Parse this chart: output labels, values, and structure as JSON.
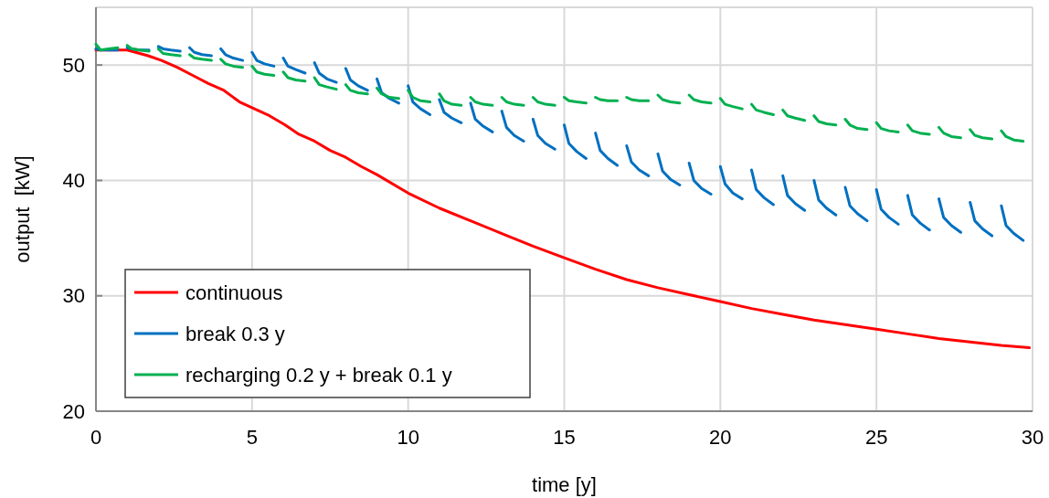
{
  "chart_data": {
    "type": "line",
    "xlabel": "time [y]",
    "ylabel": "output  [kW]",
    "xlim": [
      0,
      30
    ],
    "ylim": [
      20,
      55
    ],
    "xticks": [
      0,
      5,
      10,
      15,
      20,
      25,
      30
    ],
    "yticks": [
      20,
      30,
      40,
      50
    ],
    "grid": true,
    "legend": "bottom left",
    "line_style": "solid",
    "marker": "none",
    "x": [
      0,
      0.15,
      0.4,
      0.7,
      0.85,
      1,
      1.15,
      1.4,
      1.7,
      1.85,
      2,
      2.15,
      2.4,
      2.7,
      2.85,
      3,
      3.15,
      3.4,
      3.7,
      3.85,
      4,
      4.15,
      4.4,
      4.7,
      4.85,
      5,
      5.15,
      5.4,
      5.7,
      5.85,
      6,
      6.15,
      6.4,
      6.7,
      6.85,
      7,
      7.15,
      7.4,
      7.7,
      7.85,
      8,
      8.15,
      8.4,
      8.7,
      8.85,
      9,
      9.15,
      9.4,
      9.7,
      9.85,
      10,
      10.15,
      10.4,
      10.7,
      10.85,
      11,
      11.15,
      11.4,
      11.7,
      11.85,
      12,
      12.15,
      12.4,
      12.7,
      12.85,
      13,
      13.15,
      13.4,
      13.7,
      13.85,
      14,
      14.15,
      14.4,
      14.7,
      14.85,
      15,
      15.15,
      15.4,
      15.7,
      15.85,
      16,
      16.15,
      16.4,
      16.7,
      16.85,
      17,
      17.15,
      17.4,
      17.7,
      17.85,
      18,
      18.15,
      18.4,
      18.7,
      18.85,
      19,
      19.15,
      19.4,
      19.7,
      19.85,
      20,
      20.15,
      20.4,
      20.7,
      20.85,
      21,
      21.15,
      21.4,
      21.7,
      21.85,
      22,
      22.15,
      22.4,
      22.7,
      22.85,
      23,
      23.15,
      23.4,
      23.7,
      23.85,
      24,
      24.15,
      24.4,
      24.7,
      24.85,
      25,
      25.15,
      25.4,
      25.7,
      25.85,
      26,
      26.15,
      26.4,
      26.7,
      26.85,
      27,
      27.15,
      27.4,
      27.7,
      27.85,
      28,
      28.15,
      28.4,
      28.7,
      28.85,
      29,
      29.15,
      29.4,
      29.7
    ],
    "series": [
      {
        "name": "continuous",
        "color": "#ff0000",
        "x": [
          0,
          1,
          1.67,
          2.1,
          2.6,
          3.1,
          3.6,
          4.1,
          4.6,
          5,
          5.56,
          6.06,
          6.5,
          7,
          7.5,
          8,
          8.5,
          9,
          10,
          11,
          12,
          13,
          14,
          15,
          16,
          17,
          18,
          19,
          20,
          21,
          22,
          23,
          24,
          25,
          26,
          27,
          28,
          29,
          29.9
        ],
        "values": [
          51.3,
          51.3,
          50.8,
          50.4,
          49.8,
          49.1,
          48.4,
          47.8,
          46.8,
          46.3,
          45.6,
          44.8,
          44.0,
          43.4,
          42.6,
          42.0,
          41.2,
          40.5,
          38.9,
          37.6,
          36.5,
          35.4,
          34.3,
          33.3,
          32.3,
          31.4,
          30.7,
          30.1,
          29.5,
          28.9,
          28.4,
          27.9,
          27.5,
          27.1,
          26.7,
          26.3,
          26.0,
          25.7,
          25.5
        ]
      },
      {
        "name": "break 0.3 y",
        "color": "#0070c0",
        "values": [
          51.4,
          51.3,
          51.3,
          51.3,
          null,
          51.5,
          51.4,
          51.3,
          51.3,
          null,
          51.6,
          51.4,
          51.3,
          51.2,
          null,
          51.5,
          51.1,
          50.9,
          50.8,
          null,
          51.4,
          50.9,
          50.6,
          50.4,
          null,
          51.1,
          50.4,
          50.1,
          49.9,
          null,
          50.6,
          49.9,
          49.6,
          49.3,
          null,
          50.2,
          49.3,
          48.8,
          48.5,
          null,
          49.7,
          48.7,
          48.2,
          47.8,
          null,
          48.8,
          47.6,
          47.1,
          46.7,
          null,
          48.2,
          46.8,
          46.2,
          45.7,
          null,
          47.0,
          45.9,
          45.4,
          45.0,
          null,
          46.7,
          45.3,
          44.7,
          44.2,
          null,
          46.0,
          44.6,
          43.9,
          43.4,
          null,
          45.3,
          43.9,
          43.2,
          42.7,
          null,
          44.8,
          43.2,
          42.5,
          41.9,
          null,
          44.1,
          42.6,
          41.9,
          41.3,
          null,
          43.0,
          41.6,
          40.9,
          40.4,
          null,
          42.3,
          40.8,
          40.1,
          39.6,
          null,
          41.5,
          40.0,
          39.3,
          38.8,
          null,
          41.2,
          39.7,
          38.9,
          38.4,
          null,
          40.9,
          39.2,
          38.5,
          37.9,
          null,
          40.4,
          38.7,
          38.0,
          37.4,
          null,
          40.0,
          38.3,
          37.6,
          37.0,
          null,
          39.4,
          37.8,
          37.1,
          36.5,
          null,
          39.2,
          37.5,
          36.8,
          36.2,
          null,
          38.7,
          37.0,
          36.3,
          35.7,
          null,
          38.4,
          36.8,
          36.1,
          35.5,
          null,
          38.1,
          36.5,
          35.8,
          35.2,
          null,
          37.8,
          36.1,
          35.4,
          34.8
        ]
      },
      {
        "name": "recharging 0.2 y + break 0.1 y",
        "color": "#00b050",
        "values": [
          51.8,
          51.3,
          51.4,
          51.5,
          null,
          51.7,
          51.4,
          51.3,
          51.2,
          null,
          51.4,
          51.0,
          50.9,
          50.8,
          null,
          50.9,
          50.6,
          50.5,
          50.4,
          null,
          50.5,
          50.1,
          49.9,
          49.8,
          null,
          49.9,
          49.4,
          49.2,
          49.1,
          null,
          49.4,
          48.9,
          48.7,
          48.6,
          null,
          48.9,
          48.3,
          48.1,
          47.9,
          null,
          48.3,
          47.8,
          47.6,
          47.5,
          null,
          48.0,
          47.5,
          47.2,
          47.1,
          null,
          47.8,
          47.2,
          46.9,
          46.8,
          null,
          47.5,
          46.9,
          46.6,
          46.5,
          null,
          47.2,
          46.8,
          46.6,
          46.5,
          null,
          47.2,
          46.8,
          46.6,
          46.5,
          null,
          47.2,
          46.8,
          46.6,
          46.5,
          null,
          47.2,
          46.9,
          46.8,
          46.7,
          null,
          47.2,
          47.0,
          46.9,
          46.9,
          null,
          47.2,
          47.0,
          46.9,
          46.9,
          null,
          47.4,
          47.0,
          46.8,
          46.7,
          null,
          47.4,
          47.0,
          46.8,
          46.7,
          null,
          47.1,
          46.6,
          46.4,
          46.2,
          null,
          46.6,
          46.1,
          45.9,
          45.7,
          null,
          46.1,
          45.6,
          45.4,
          45.2,
          null,
          45.6,
          45.1,
          44.9,
          44.8,
          null,
          45.3,
          44.8,
          44.5,
          44.4,
          null,
          45.0,
          44.5,
          44.3,
          44.2,
          null,
          44.8,
          44.3,
          44.1,
          44.0,
          null,
          44.6,
          44.1,
          43.8,
          43.7,
          null,
          44.4,
          43.9,
          43.7,
          43.6,
          null,
          44.3,
          43.8,
          43.5,
          43.4
        ]
      }
    ]
  }
}
